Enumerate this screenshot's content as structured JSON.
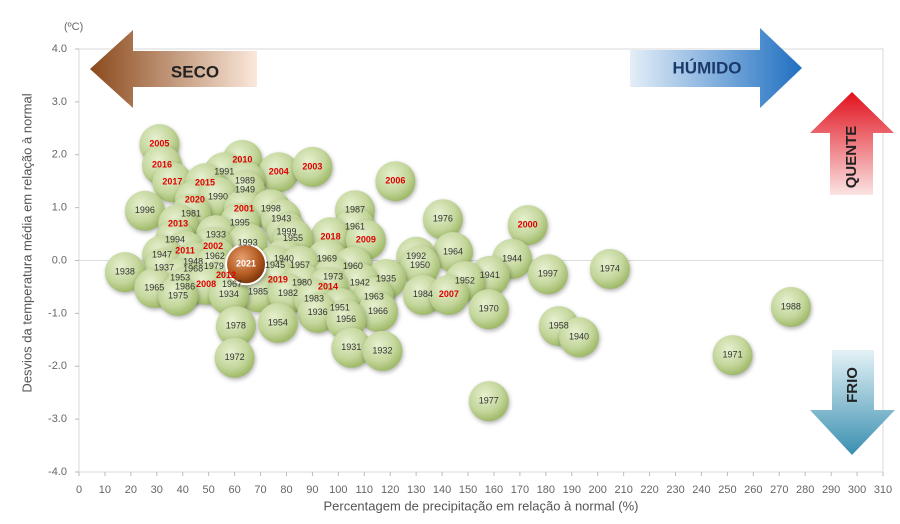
{
  "chart_data": {
    "type": "scatter",
    "y_unit": "(ºC)",
    "x_label": "Percentagem de precipitação em relação à normal (%)",
    "y_label": "Desvios da temperatura média em relação à normal",
    "annotations": {
      "dry": "SECO",
      "wet": "HÚMIDO",
      "hot": "QUENTE",
      "cold": "FRIO"
    },
    "xlim": [
      0,
      310
    ],
    "ylim": [
      -4,
      4
    ],
    "xticks": [
      0,
      10,
      20,
      30,
      40,
      50,
      60,
      70,
      80,
      90,
      100,
      110,
      120,
      130,
      140,
      150,
      160,
      170,
      180,
      190,
      200,
      210,
      220,
      230,
      240,
      250,
      260,
      270,
      280,
      290,
      300,
      310
    ],
    "yticks": [
      {
        "value": -4,
        "label": "-4.0"
      },
      {
        "value": -3,
        "label": "-3.0"
      },
      {
        "value": -2,
        "label": "-2.0"
      },
      {
        "value": -1,
        "label": "-1.0"
      },
      {
        "value": 0,
        "label": "0.0"
      },
      {
        "value": 1,
        "label": "1.0"
      },
      {
        "value": 2,
        "label": "2.0"
      },
      {
        "value": 3,
        "label": "3.0"
      },
      {
        "value": 4,
        "label": "4.0"
      }
    ],
    "points": [
      {
        "label": "2005",
        "x": 31,
        "y": 2.2,
        "label_color": "#e00000"
      },
      {
        "label": "2016",
        "x": 32,
        "y": 1.8,
        "label_color": "#e00000"
      },
      {
        "label": "2010",
        "x": 63,
        "y": 1.9,
        "label_color": "#e00000"
      },
      {
        "label": "2004",
        "x": 77,
        "y": 1.67,
        "label_color": "#e00000"
      },
      {
        "label": "2003",
        "x": 90,
        "y": 1.77,
        "label_color": "#e00000"
      },
      {
        "label": "1991",
        "x": 56,
        "y": 1.67,
        "label_color": "#333333"
      },
      {
        "label": "1989",
        "x": 64,
        "y": 1.5,
        "label_color": "#333333"
      },
      {
        "label": "1949",
        "x": 64,
        "y": 1.33,
        "label_color": "#333333"
      },
      {
        "label": "2017",
        "x": 36,
        "y": 1.48,
        "label_color": "#e00000"
      },
      {
        "label": "2015",
        "x": 48.6,
        "y": 1.46,
        "label_color": "#e00000"
      },
      {
        "label": "2006",
        "x": 122,
        "y": 1.5,
        "label_color": "#e00000"
      },
      {
        "label": "1996",
        "x": 25.4,
        "y": 0.94,
        "label_color": "#333333"
      },
      {
        "label": "2020",
        "x": 44.7,
        "y": 1.14,
        "label_color": "#e00000"
      },
      {
        "label": "1990",
        "x": 53.6,
        "y": 1.2,
        "label_color": "#333333"
      },
      {
        "label": "1981",
        "x": 43.2,
        "y": 0.88,
        "label_color": "#333333"
      },
      {
        "label": "2001",
        "x": 63.6,
        "y": 0.97,
        "label_color": "#e00000"
      },
      {
        "label": "1998",
        "x": 74,
        "y": 0.97,
        "label_color": "#333333"
      },
      {
        "label": "1987",
        "x": 106.4,
        "y": 0.95,
        "label_color": "#333333"
      },
      {
        "label": "1976",
        "x": 140.3,
        "y": 0.78,
        "label_color": "#333333"
      },
      {
        "label": "2000",
        "x": 173,
        "y": 0.67,
        "label_color": "#e00000"
      },
      {
        "label": "2013",
        "x": 38.2,
        "y": 0.69,
        "label_color": "#e00000"
      },
      {
        "label": "1995",
        "x": 62,
        "y": 0.71,
        "label_color": "#333333"
      },
      {
        "label": "1943",
        "x": 78,
        "y": 0.78,
        "label_color": "#333333"
      },
      {
        "label": "1961",
        "x": 106.4,
        "y": 0.63,
        "label_color": "#333333"
      },
      {
        "label": "1933",
        "x": 52.8,
        "y": 0.48,
        "label_color": "#333333"
      },
      {
        "label": "1999",
        "x": 80,
        "y": 0.54,
        "label_color": "#333333"
      },
      {
        "label": "2018",
        "x": 97,
        "y": 0.44,
        "label_color": "#e00000"
      },
      {
        "label": "2009",
        "x": 110.6,
        "y": 0.39,
        "label_color": "#e00000"
      },
      {
        "label": "1994",
        "x": 37,
        "y": 0.39,
        "label_color": "#333333"
      },
      {
        "label": "1955",
        "x": 82.5,
        "y": 0.41,
        "label_color": "#333333"
      },
      {
        "label": "1993",
        "x": 65,
        "y": 0.33,
        "label_color": "#333333"
      },
      {
        "label": "2002",
        "x": 51.7,
        "y": 0.26,
        "label_color": "#e00000"
      },
      {
        "label": "2011",
        "x": 40.9,
        "y": 0.18,
        "label_color": "#e00000"
      },
      {
        "label": "1964",
        "x": 144.2,
        "y": 0.16,
        "label_color": "#333333"
      },
      {
        "label": "1947",
        "x": 32,
        "y": 0.1,
        "label_color": "#333333"
      },
      {
        "label": "1962",
        "x": 52.4,
        "y": 0.07,
        "label_color": "#333333"
      },
      {
        "label": "1944",
        "x": 167,
        "y": 0.03,
        "label_color": "#333333"
      },
      {
        "label": "1992",
        "x": 130,
        "y": 0.07,
        "label_color": "#333333"
      },
      {
        "label": "1948",
        "x": 44,
        "y": -0.03,
        "label_color": "#333333"
      },
      {
        "label": "1969",
        "x": 95.6,
        "y": 0.03,
        "label_color": "#333333"
      },
      {
        "label": "1940",
        "x": 79,
        "y": 0.03,
        "label_color": "#333333"
      },
      {
        "label": "1945",
        "x": 75.6,
        "y": -0.1,
        "label_color": "#333333"
      },
      {
        "label": "1957",
        "x": 85.2,
        "y": -0.1,
        "label_color": "#333333"
      },
      {
        "label": "1950",
        "x": 131.5,
        "y": -0.1,
        "label_color": "#333333"
      },
      {
        "label": "1960",
        "x": 105.6,
        "y": -0.12,
        "label_color": "#333333"
      },
      {
        "label": "1937",
        "x": 32.8,
        "y": -0.14,
        "label_color": "#333333"
      },
      {
        "label": "1968",
        "x": 44,
        "y": -0.16,
        "label_color": "#333333"
      },
      {
        "label": "1979",
        "x": 52,
        "y": -0.12,
        "label_color": "#333333"
      },
      {
        "label": "1938",
        "x": 17.7,
        "y": -0.22,
        "label_color": "#333333"
      },
      {
        "label": "1941",
        "x": 158.4,
        "y": -0.29,
        "label_color": "#333333"
      },
      {
        "label": "1997",
        "x": 180.8,
        "y": -0.26,
        "label_color": "#333333"
      },
      {
        "label": "1974",
        "x": 204.7,
        "y": -0.16,
        "label_color": "#333333"
      },
      {
        "label": "1973",
        "x": 98,
        "y": -0.31,
        "label_color": "#333333"
      },
      {
        "label": "1953",
        "x": 39,
        "y": -0.33,
        "label_color": "#333333"
      },
      {
        "label": "2019",
        "x": 76.7,
        "y": -0.37,
        "label_color": "#e00000"
      },
      {
        "label": "1935",
        "x": 118.4,
        "y": -0.35,
        "label_color": "#333333"
      },
      {
        "label": "2012",
        "x": 56.7,
        "y": -0.29,
        "label_color": "#e00000"
      },
      {
        "label": "1952",
        "x": 148.8,
        "y": -0.39,
        "label_color": "#333333"
      },
      {
        "label": "1980",
        "x": 86,
        "y": -0.43,
        "label_color": "#333333"
      },
      {
        "label": "1942",
        "x": 108.3,
        "y": -0.43,
        "label_color": "#333333"
      },
      {
        "label": "1967",
        "x": 59,
        "y": -0.46,
        "label_color": "#333333"
      },
      {
        "label": "1965",
        "x": 29,
        "y": -0.52,
        "label_color": "#333333"
      },
      {
        "label": "1986",
        "x": 40.9,
        "y": -0.5,
        "label_color": "#333333"
      },
      {
        "label": "2008",
        "x": 49,
        "y": -0.46,
        "label_color": "#e00000"
      },
      {
        "label": "2014",
        "x": 96,
        "y": -0.5,
        "label_color": "#e00000"
      },
      {
        "label": "1975",
        "x": 38.2,
        "y": -0.67,
        "label_color": "#333333"
      },
      {
        "label": "1985",
        "x": 69,
        "y": -0.6,
        "label_color": "#333333"
      },
      {
        "label": "1982",
        "x": 80.6,
        "y": -0.63,
        "label_color": "#333333"
      },
      {
        "label": "1934",
        "x": 57.8,
        "y": -0.65,
        "label_color": "#333333"
      },
      {
        "label": "1984",
        "x": 132.6,
        "y": -0.65,
        "label_color": "#333333"
      },
      {
        "label": "2007",
        "x": 142.6,
        "y": -0.65,
        "label_color": "#e00000"
      },
      {
        "label": "1963",
        "x": 113.7,
        "y": -0.69,
        "label_color": "#333333"
      },
      {
        "label": "1983",
        "x": 90.6,
        "y": -0.73,
        "label_color": "#333333"
      },
      {
        "label": "1951",
        "x": 100.6,
        "y": -0.9,
        "label_color": "#333333"
      },
      {
        "label": "1970",
        "x": 158,
        "y": -0.92,
        "label_color": "#333333"
      },
      {
        "label": "1936",
        "x": 92,
        "y": -0.99,
        "label_color": "#333333"
      },
      {
        "label": "1966",
        "x": 115.3,
        "y": -0.97,
        "label_color": "#333333"
      },
      {
        "label": "1988",
        "x": 274.5,
        "y": -0.88,
        "label_color": "#333333"
      },
      {
        "label": "1956",
        "x": 103,
        "y": -1.12,
        "label_color": "#333333"
      },
      {
        "label": "1978",
        "x": 60.5,
        "y": -1.24,
        "label_color": "#333333"
      },
      {
        "label": "1954",
        "x": 76.7,
        "y": -1.18,
        "label_color": "#333333"
      },
      {
        "label": "1958",
        "x": 185,
        "y": -1.24,
        "label_color": "#333333"
      },
      {
        "label": "1940",
        "x": 192.8,
        "y": -1.45,
        "label_color": "#333333"
      },
      {
        "label": "1931",
        "x": 105,
        "y": -1.65,
        "label_color": "#333333"
      },
      {
        "label": "1932",
        "x": 117,
        "y": -1.71,
        "label_color": "#333333"
      },
      {
        "label": "1972",
        "x": 60,
        "y": -1.84,
        "label_color": "#333333"
      },
      {
        "label": "1971",
        "x": 252,
        "y": -1.79,
        "label_color": "#333333"
      },
      {
        "label": "1977",
        "x": 158,
        "y": -2.66,
        "label_color": "#333333"
      },
      {
        "label": "2021",
        "x": 64.4,
        "y": -0.07,
        "label_color": "#ffffff",
        "highlight": true
      }
    ]
  }
}
